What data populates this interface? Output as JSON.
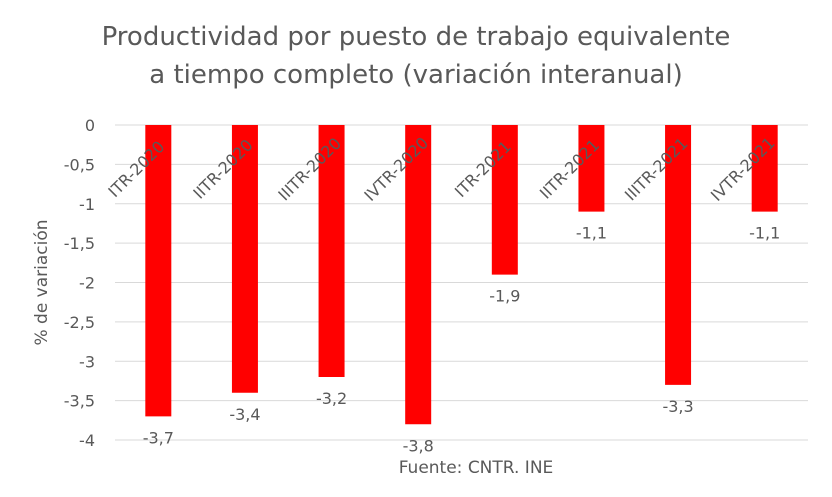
{
  "chart_data": {
    "type": "bar",
    "title": [
      "Productividad por puesto de trabajo equivalente",
      "a tiempo completo (variación interanual)"
    ],
    "ylabel": "% de variación",
    "xlabel": "",
    "source": "Fuente: CNTR. INE",
    "categories": [
      "ITR-2020",
      "IITR-2020",
      "IIITR-2020",
      "IVTR-2020",
      "ITR-2021",
      "IITR-2021",
      "IIITR-2021",
      "IVTR-2021"
    ],
    "values": [
      -3.7,
      -3.4,
      -3.2,
      -3.8,
      -1.9,
      -1.1,
      -3.3,
      -1.1
    ],
    "value_labels": [
      "-3,7",
      "-3,4",
      "-3,2",
      "-3,8",
      "-1,9",
      "-1,1",
      "-3,3",
      "-1,1"
    ],
    "ylim": [
      -4,
      0
    ],
    "yticks": [
      0,
      -0.5,
      -1,
      -1.5,
      -2,
      -2.5,
      -3,
      -3.5,
      -4
    ],
    "ytick_labels": [
      "0",
      "-0,5",
      "-1",
      "-1,5",
      "-2",
      "-2,5",
      "-3",
      "-3,5",
      "-4"
    ],
    "grid": true,
    "legend": "none",
    "colors": {
      "bar": "#ff0000",
      "grid": "#d9d9d9",
      "text": "#595959"
    }
  }
}
